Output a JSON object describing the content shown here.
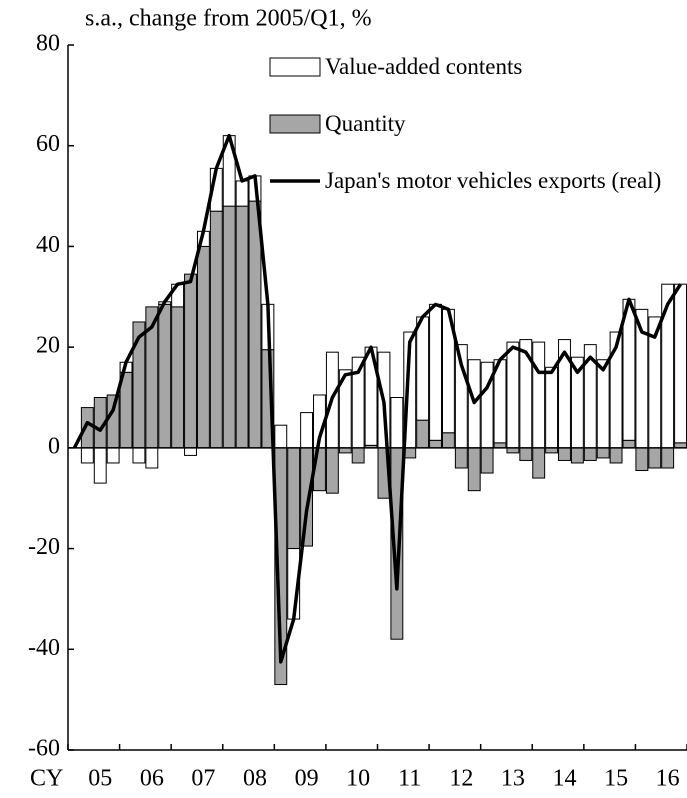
{
  "chart_data": {
    "type": "bar",
    "stacked": true,
    "ylabel": "s.a., change from 2005/Q1, %",
    "xlabel": "CY",
    "categories": [
      null,
      null,
      "05",
      null,
      null,
      null,
      "06",
      null,
      null,
      null,
      "07",
      null,
      null,
      null,
      "08",
      null,
      null,
      null,
      "09",
      null,
      null,
      null,
      "10",
      null,
      null,
      null,
      "11",
      null,
      null,
      null,
      "12",
      null,
      null,
      null,
      "13",
      null,
      null,
      null,
      "14",
      null,
      null,
      null,
      "15",
      null,
      null,
      null,
      "16",
      null
    ],
    "series": [
      {
        "name": "Quantity",
        "type": "bar",
        "color": "#a6a6a6",
        "values": [
          0,
          8,
          10,
          10.5,
          15,
          25,
          28,
          28.5,
          28,
          34.5,
          40,
          47,
          48,
          48,
          49,
          19.5,
          -47,
          -20,
          -19.5,
          -8.5,
          -9,
          -1,
          -3,
          0.5,
          -10,
          -38,
          -2,
          5.5,
          1.5,
          3,
          -4,
          -8.5,
          -5,
          1,
          -1,
          -2.5,
          -6,
          -1,
          -2.5,
          -3,
          -2.5,
          -2,
          -3,
          1.5,
          -4.5,
          -4,
          -4,
          1
        ]
      },
      {
        "name": "Value-added contents",
        "type": "bar",
        "color": "#ffffff",
        "values": [
          0,
          -3,
          -7,
          -3,
          2,
          -3,
          -4,
          0.5,
          4.5,
          -1.5,
          3,
          8.5,
          14,
          5,
          5,
          9,
          4.5,
          -14,
          7,
          10.5,
          19,
          15.5,
          18,
          19.5,
          19,
          10,
          23,
          20.5,
          27,
          24.5,
          20.5,
          17.5,
          17,
          16.5,
          21,
          21.5,
          21,
          16,
          21.5,
          18,
          20.5,
          17.5,
          23,
          28,
          27.5,
          26,
          32.5,
          31.5
        ]
      },
      {
        "name": "Japan's motor vehicles exports (real)",
        "type": "line",
        "color": "#000000",
        "values": [
          0,
          5,
          3.5,
          7.5,
          17,
          22,
          24,
          29,
          32.5,
          33,
          43,
          55.5,
          62,
          53,
          54,
          28.5,
          -42.5,
          -34,
          -12.5,
          2,
          10,
          14.5,
          15,
          20,
          9,
          -28,
          21,
          26,
          28.5,
          27.5,
          16.5,
          9,
          12,
          17.5,
          20,
          19,
          15,
          15,
          19,
          15,
          18,
          15.5,
          20,
          29.5,
          23,
          22,
          28.5,
          32.5
        ]
      }
    ],
    "ylim": [
      -60,
      80
    ],
    "yticks": [
      -60,
      -40,
      -20,
      0,
      20,
      40,
      60,
      80
    ]
  }
}
